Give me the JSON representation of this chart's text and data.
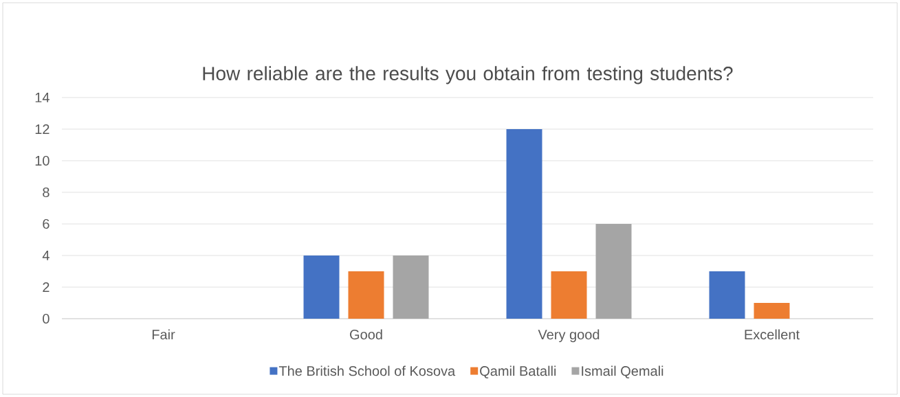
{
  "chart_data": {
    "type": "bar",
    "title": "How reliable are the results you obtain from testing students?",
    "categories": [
      "Fair",
      "Good",
      "Very good",
      "Excellent"
    ],
    "series": [
      {
        "name": "The British School of Kosova",
        "color": "#4472c4",
        "values": [
          0,
          4,
          12,
          3
        ]
      },
      {
        "name": "Qamil Batalli",
        "color": "#ed7d31",
        "values": [
          0,
          3,
          3,
          1
        ]
      },
      {
        "name": "Ismail Qemali",
        "color": "#a5a5a5",
        "values": [
          0,
          4,
          6,
          0
        ]
      }
    ],
    "ylim": [
      0,
      14
    ],
    "yticks": [
      0,
      2,
      4,
      6,
      8,
      10,
      12,
      14
    ],
    "grid": "y",
    "legend": "bottom"
  }
}
